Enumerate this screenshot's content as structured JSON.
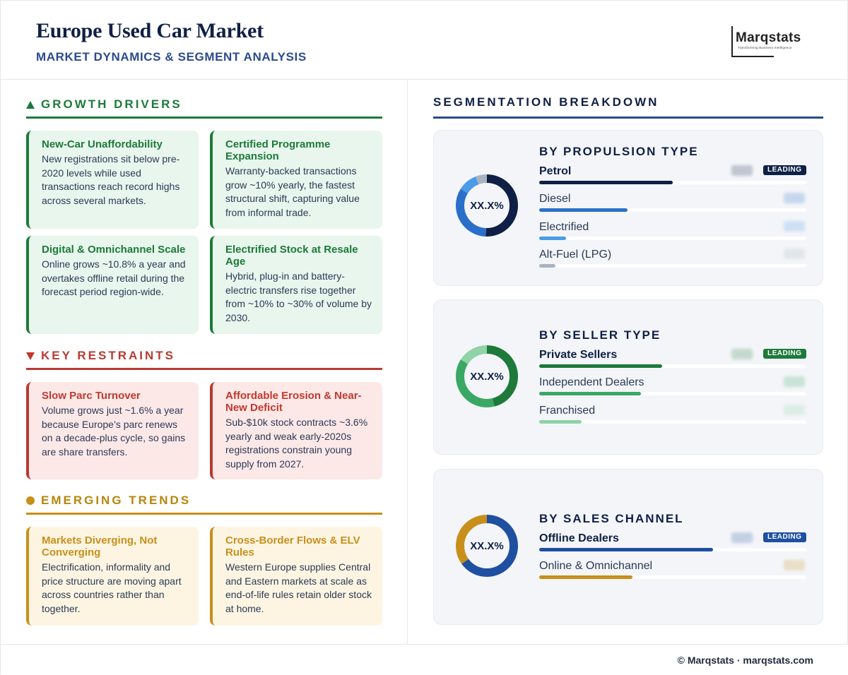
{
  "header": {
    "title": "Europe Used Car Market",
    "subtitle": "MARKET DYNAMICS & SEGMENT ANALYSIS",
    "logo_text": "Marqstats",
    "logo_tagline": "Transforming Business Intelligence"
  },
  "growth": {
    "heading": "GROWTH DRIVERS",
    "cards": [
      {
        "title": "New-Car Unaffordability",
        "body": "New registrations sit below pre-2020 levels while used transactions reach record highs across several markets."
      },
      {
        "title": "Certified Programme Expansion",
        "body": "Warranty-backed transactions grow ~10% yearly, the fastest structural shift, capturing value from informal trade."
      },
      {
        "title": "Digital & Omnichannel Scale",
        "body": "Online grows ~10.8% a year and overtakes offline retail during the forecast period region-wide."
      },
      {
        "title": "Electrified Stock at Resale Age",
        "body": "Hybrid, plug-in and battery-electric transfers rise together from ~10% to ~30% of volume by 2030."
      }
    ]
  },
  "restraints": {
    "heading": "KEY RESTRAINTS",
    "cards": [
      {
        "title": "Slow Parc Turnover",
        "body": "Volume grows just ~1.6% a year because Europe’s parc renews on a decade-plus cycle, so gains are share transfers."
      },
      {
        "title": "Affordable Erosion & Near-New Deficit",
        "body": "Sub-$10k stock contracts ~3.6% yearly and weak early-2020s registrations constrain young supply from 2027."
      }
    ]
  },
  "trends": {
    "heading": "EMERGING TRENDS",
    "cards": [
      {
        "title": "Markets Diverging, Not Converging",
        "body": "Electrification, informality and price structure are moving apart across countries rather than together."
      },
      {
        "title": "Cross-Border Flows & ELV Rules",
        "body": "Western Europe supplies Central and Eastern markets at scale as end-of-life rules retain older stock at home."
      }
    ]
  },
  "segmentation": {
    "heading": "SEGMENTATION BREAKDOWN",
    "badge_label": "LEADING",
    "panels": [
      {
        "title": "BY PROPULSION TYPE",
        "center_label": "XX.X%",
        "segments": [
          {
            "label": "Petrol",
            "share": 0.5,
            "color": "#0f1f45",
            "leading": true
          },
          {
            "label": "Diesel",
            "share": 0.33,
            "color": "#2a6fc9",
            "leading": false
          },
          {
            "label": "Electrified",
            "share": 0.1,
            "color": "#4a9be8",
            "leading": false
          },
          {
            "label": "Alt-Fuel (LPG)",
            "share": 0.06,
            "color": "#a9b3c1",
            "leading": false
          }
        ]
      },
      {
        "title": "BY SELLER TYPE",
        "center_label": "XX.X%",
        "segments": [
          {
            "label": "Private Sellers",
            "share": 0.46,
            "color": "#1d7a3a",
            "leading": true
          },
          {
            "label": "Independent Dealers",
            "share": 0.38,
            "color": "#3aa864",
            "leading": false
          },
          {
            "label": "Franchised",
            "share": 0.16,
            "color": "#8fd3a6",
            "leading": false
          }
        ]
      },
      {
        "title": "BY SALES CHANNEL",
        "center_label": "XX.X%",
        "segments": [
          {
            "label": "Offline Dealers",
            "share": 0.65,
            "color": "#1f4fa0",
            "leading": true
          },
          {
            "label": "Online & Omnichannel",
            "share": 0.35,
            "color": "#c98f1b",
            "leading": false
          }
        ]
      }
    ]
  },
  "footer": {
    "text": "© Marqstats · marqstats.com"
  }
}
